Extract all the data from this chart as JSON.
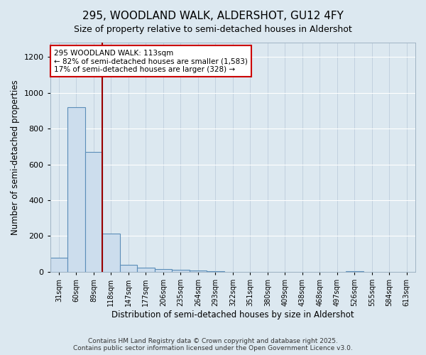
{
  "title": "295, WOODLAND WALK, ALDERSHOT, GU12 4FY",
  "subtitle": "Size of property relative to semi-detached houses in Aldershot",
  "xlabel": "Distribution of semi-detached houses by size in Aldershot",
  "ylabel": "Number of semi-detached properties",
  "bar_labels": [
    "31sqm",
    "60sqm",
    "89sqm",
    "118sqm",
    "147sqm",
    "177sqm",
    "206sqm",
    "235sqm",
    "264sqm",
    "293sqm",
    "322sqm",
    "351sqm",
    "380sqm",
    "409sqm",
    "438sqm",
    "468sqm",
    "497sqm",
    "526sqm",
    "555sqm",
    "584sqm",
    "613sqm"
  ],
  "bar_values": [
    80,
    920,
    670,
    215,
    40,
    25,
    15,
    10,
    8,
    3,
    0,
    0,
    0,
    0,
    0,
    0,
    0,
    2,
    0,
    0,
    0
  ],
  "bar_color": "#ccdded",
  "bar_edge_color": "#5b8db8",
  "vline_x": 2.5,
  "vline_color": "#990000",
  "annotation_text": "295 WOODLAND WALK: 113sqm\n← 82% of semi-detached houses are smaller (1,583)\n17% of semi-detached houses are larger (328) →",
  "annotation_box_color": "#ffffff",
  "annotation_box_edge": "#cc0000",
  "ylim": [
    0,
    1280
  ],
  "yticks": [
    0,
    200,
    400,
    600,
    800,
    1000,
    1200
  ],
  "background_color": "#dce8f0",
  "plot_bg_color": "#dce8f0",
  "footer_text": "Contains HM Land Registry data © Crown copyright and database right 2025.\nContains public sector information licensed under the Open Government Licence v3.0.",
  "title_fontsize": 11,
  "subtitle_fontsize": 9,
  "tick_fontsize": 7,
  "label_fontsize": 8.5,
  "footer_fontsize": 6.5
}
